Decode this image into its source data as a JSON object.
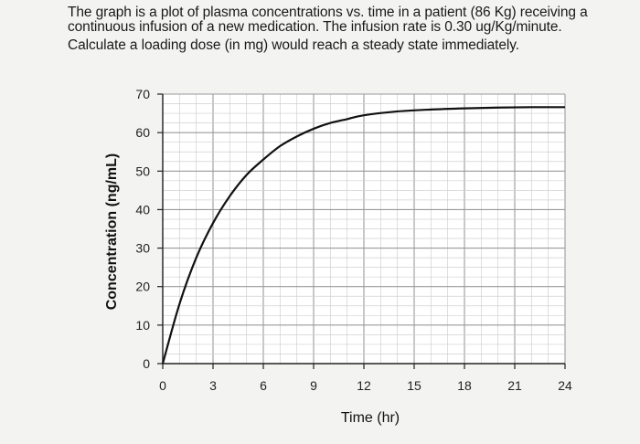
{
  "question": {
    "line1": "The graph is a plot of plasma concentrations vs. time in a patient (86 Kg) receiving a",
    "line2": "continuous infusion of a new medication.  The infusion rate is 0.30 ug/Kg/minute.",
    "line3": "Calculate a loading dose (in mg) would reach a steady state immediately."
  },
  "chart_data": {
    "type": "line",
    "title": "",
    "xlabel": "Time (hr)",
    "ylabel": "Concentration (ng/mL)",
    "xlim": [
      0,
      24
    ],
    "ylim": [
      0,
      70
    ],
    "x_ticks": [
      0,
      3,
      6,
      9,
      12,
      15,
      18,
      21,
      24
    ],
    "y_ticks": [
      0,
      10,
      20,
      30,
      40,
      50,
      60,
      70
    ],
    "grid": true,
    "legend": "none",
    "line_color": "#111111",
    "series": [
      {
        "x": [
          0,
          1,
          2,
          3,
          4,
          5,
          6,
          7,
          8,
          9,
          10,
          11,
          12,
          14,
          16,
          18,
          20,
          22,
          24
        ],
        "y": [
          0,
          15.5,
          27.5,
          36.5,
          43.5,
          49,
          53,
          56.5,
          59,
          61,
          62.5,
          63.5,
          64.5,
          65.5,
          66,
          66.3,
          66.5,
          66.6,
          66.6
        ]
      }
    ]
  }
}
